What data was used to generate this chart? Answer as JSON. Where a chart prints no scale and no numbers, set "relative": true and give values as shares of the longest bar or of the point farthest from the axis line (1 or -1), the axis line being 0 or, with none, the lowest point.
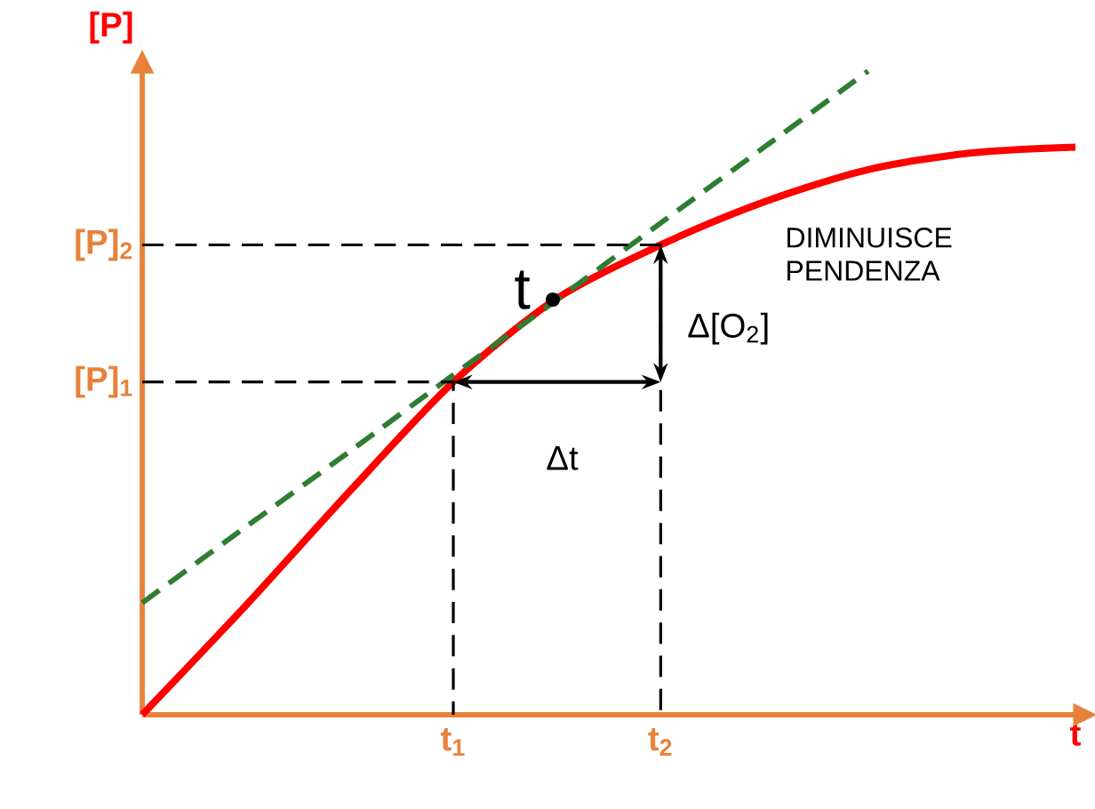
{
  "chart_data": {
    "type": "line",
    "relative": true,
    "xlabel": "t",
    "ylabel": "[P]",
    "categories": [
      null,
      null,
      null,
      "t$_{1}$",
      null,
      "t$_{2}$",
      null,
      null,
      null,
      null
    ],
    "series": [
      {
        "color": "#ff0000",
        "line_style": "solid",
        "values": [
          0,
          0.17,
          0.347,
          0.517,
          0.647,
          0.73,
          0.797,
          0.847,
          0.873,
          0.882
        ]
      },
      {
        "color": "#2e7d32",
        "line_style": "dashed",
        "values": [
          0.174,
          0.292,
          0.409,
          0.528,
          0.645,
          0.764,
          0.882,
          1.0,
          null,
          null
        ]
      }
    ],
    "ref_lines": [
      {
        "axis": "y",
        "value": 0.517,
        "label": "[P]$_{1}$",
        "color": "#000000",
        "line_style": "dashed"
      },
      {
        "axis": "y",
        "value": 0.73,
        "label": "[P]$_{2}$",
        "color": "#000000",
        "line_style": "dashed"
      }
    ],
    "annotations": [
      "t",
      "DIMINUISCE PENDENZA",
      "Δ[O$_{2}$]",
      "Δt"
    ]
  }
}
